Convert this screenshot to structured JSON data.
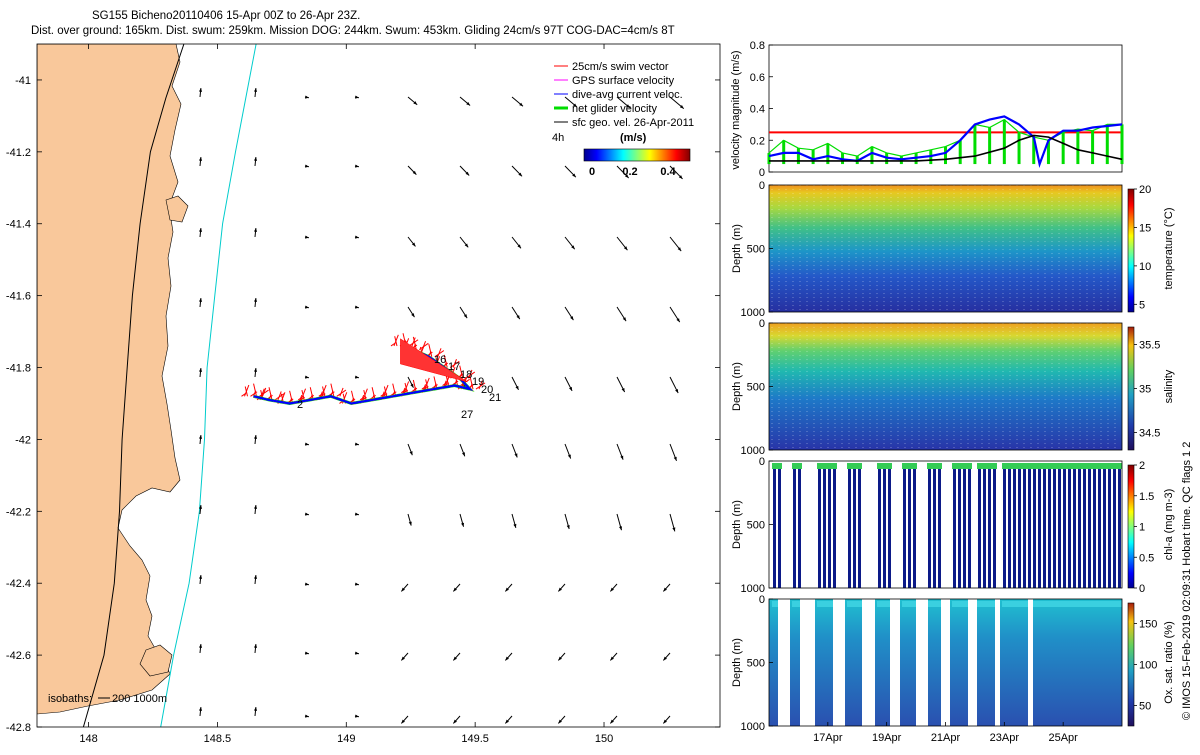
{
  "header": {
    "title": "SG155 Bicheno20110406 15-Apr 00Z to 26-Apr 23Z.",
    "subtitle": "Dist. over ground: 165km. Dist. swum: 259km. Mission DOG: 244km. Swum: 453km. Gliding 24cm/s 97T COG-DAC=4cm/s 8T"
  },
  "footer_note": "© IMOS 15-Feb-2019 02:09:31 Hobart time. QC flags 1  2",
  "colors": {
    "land": "#f9c89b",
    "swim_vector": "#ff0000",
    "gps_velocity": "#ff00ff",
    "dac": "#0000ff",
    "net_glider": "#00dd00",
    "sfc_geo": "#000000",
    "isobath_200": "#000000",
    "isobath_1000": "#00cccc"
  },
  "map": {
    "legend": {
      "items": [
        {
          "label": "25cm/s swim vector",
          "color": "#ff0000"
        },
        {
          "label": "GPS surface velocity",
          "color": "#ff00ff"
        },
        {
          "label": "dive-avg current veloc.",
          "color": "#0000ff"
        },
        {
          "label": "net glider velocity",
          "color": "#00dd00"
        },
        {
          "label": "sfc geo. vel. 26-Apr-2011",
          "color": "#000000"
        }
      ],
      "interval": "4h"
    },
    "colorbar": {
      "title": "(m/s)",
      "ticks": [
        "0",
        "0.2",
        "0.4"
      ]
    },
    "isobath_label": "isobaths:",
    "isobath_values": "200  1000m",
    "track_labels": [
      "16",
      "17",
      "18",
      "19",
      "20",
      "21",
      "2",
      "27"
    ]
  },
  "chart_data": [
    {
      "type": "scatter",
      "name": "glider track map",
      "xlim": [
        147.8,
        150.45
      ],
      "ylim": [
        -42.8,
        -40.9
      ],
      "x_ticks": [
        148,
        148.5,
        149,
        149.5,
        150
      ],
      "y_ticks": [
        -41,
        -41.2,
        -41.4,
        -41.6,
        -41.8,
        -42,
        -42.2,
        -42.4,
        -42.6,
        -42.8
      ],
      "track": [
        [
          148.64,
          -41.88
        ],
        [
          148.7,
          -41.89
        ],
        [
          148.78,
          -41.9
        ],
        [
          148.86,
          -41.89
        ],
        [
          148.94,
          -41.88
        ],
        [
          149.02,
          -41.9
        ],
        [
          149.1,
          -41.89
        ],
        [
          149.18,
          -41.88
        ],
        [
          149.26,
          -41.87
        ],
        [
          149.34,
          -41.86
        ],
        [
          149.42,
          -41.85
        ],
        [
          149.48,
          -41.86
        ],
        [
          149.44,
          -41.83
        ],
        [
          149.38,
          -41.8
        ],
        [
          149.32,
          -41.77
        ],
        [
          149.26,
          -41.75
        ],
        [
          149.22,
          -41.74
        ]
      ],
      "isobath_200": [
        [
          148.37,
          -40.9
        ],
        [
          148.3,
          -41.05
        ],
        [
          148.24,
          -41.2
        ],
        [
          148.2,
          -41.4
        ],
        [
          148.17,
          -41.6
        ],
        [
          148.15,
          -41.8
        ],
        [
          148.13,
          -42.0
        ],
        [
          148.12,
          -42.2
        ],
        [
          148.1,
          -42.4
        ],
        [
          148.06,
          -42.6
        ],
        [
          147.98,
          -42.8
        ]
      ],
      "isobath_1000": [
        [
          148.65,
          -40.9
        ],
        [
          148.61,
          -41.05
        ],
        [
          148.57,
          -41.2
        ],
        [
          148.52,
          -41.4
        ],
        [
          148.49,
          -41.6
        ],
        [
          148.46,
          -41.8
        ],
        [
          148.45,
          -42.0
        ],
        [
          148.43,
          -42.2
        ],
        [
          148.39,
          -42.4
        ],
        [
          148.33,
          -42.6
        ],
        [
          148.28,
          -42.8
        ]
      ]
    },
    {
      "type": "line",
      "name": "velocity magnitude",
      "ylabel": "velocity magnitude (m/s)",
      "ylim": [
        0,
        0.8
      ],
      "y_ticks": [
        0,
        0.2,
        0.4,
        0.6,
        0.8
      ],
      "x_day_range": [
        15,
        27
      ],
      "reference_level": 0.25,
      "series": [
        {
          "label": "net glider velocity",
          "color": "#00dd00",
          "day": [
            15,
            15.5,
            16,
            16.5,
            17,
            17.5,
            18,
            18.5,
            19,
            19.5,
            20,
            20.5,
            21,
            21.5,
            22,
            22.5,
            23,
            23.5,
            24,
            24.5,
            25,
            25.5,
            26,
            26.5,
            27
          ],
          "values": [
            0.12,
            0.2,
            0.15,
            0.14,
            0.18,
            0.12,
            0.1,
            0.16,
            0.12,
            0.1,
            0.12,
            0.14,
            0.16,
            0.2,
            0.3,
            0.28,
            0.33,
            0.25,
            0.22,
            0.2,
            0.25,
            0.27,
            0.26,
            0.3,
            0.3
          ]
        },
        {
          "label": "dive-avg current veloc.",
          "color": "#0000ff",
          "day": [
            15,
            15.5,
            16,
            16.5,
            17,
            17.5,
            18,
            18.5,
            19,
            19.5,
            20,
            20.5,
            21,
            21.5,
            22,
            22.5,
            23,
            23.5,
            24,
            24.2,
            24.5,
            25,
            25.5,
            26,
            26.5,
            27
          ],
          "values": [
            0.1,
            0.12,
            0.12,
            0.08,
            0.1,
            0.08,
            0.07,
            0.12,
            0.09,
            0.08,
            0.09,
            0.1,
            0.12,
            0.2,
            0.3,
            0.33,
            0.35,
            0.3,
            0.22,
            0.05,
            0.2,
            0.26,
            0.26,
            0.28,
            0.29,
            0.3
          ]
        },
        {
          "label": "sfc geo. vel.",
          "color": "#000000",
          "day": [
            15,
            16,
            17,
            18,
            19,
            20,
            21,
            22,
            23,
            23.5,
            24,
            24.5,
            25,
            25.5,
            26,
            26.5,
            27
          ],
          "values": [
            0.07,
            0.07,
            0.07,
            0.07,
            0.07,
            0.07,
            0.08,
            0.1,
            0.15,
            0.2,
            0.23,
            0.22,
            0.18,
            0.14,
            0.12,
            0.1,
            0.08
          ]
        }
      ]
    },
    {
      "type": "heatmap",
      "name": "temperature",
      "ylabel": "Depth (m)",
      "colorbar_label": "temperature (°C)",
      "ylim": [
        0,
        1000
      ],
      "y_ticks": [
        0,
        500,
        1000
      ],
      "colorbar_range": [
        4,
        20
      ],
      "colorbar_ticks": [
        5,
        10,
        15,
        20
      ]
    },
    {
      "type": "heatmap",
      "name": "salinity",
      "ylabel": "Depth (m)",
      "colorbar_label": "salinity",
      "ylim": [
        0,
        1000
      ],
      "y_ticks": [
        0,
        500,
        1000
      ],
      "colorbar_range": [
        34.3,
        35.7
      ],
      "colorbar_ticks": [
        34.5,
        35,
        35.5
      ]
    },
    {
      "type": "heatmap",
      "name": "chl-a",
      "ylabel": "Depth (m)",
      "colorbar_label": "chl-a (mg m-3)",
      "ylim": [
        0,
        1000
      ],
      "y_ticks": [
        0,
        500,
        1000
      ],
      "colorbar_range": [
        0,
        2
      ],
      "colorbar_ticks": [
        0,
        0.5,
        1,
        1.5,
        2
      ]
    },
    {
      "type": "heatmap",
      "name": "oxygen saturation",
      "ylabel": "Depth (m)",
      "colorbar_label": "Ox. sat. ratio (%)",
      "ylim": [
        0,
        1000
      ],
      "y_ticks": [
        0,
        500,
        1000
      ],
      "colorbar_range": [
        25,
        175
      ],
      "colorbar_ticks": [
        50,
        100,
        150
      ],
      "x_tick_labels": [
        "17Apr",
        "19Apr",
        "21Apr",
        "23Apr",
        "25Apr"
      ],
      "x_tick_days": [
        17,
        19,
        21,
        23,
        25
      ]
    }
  ]
}
